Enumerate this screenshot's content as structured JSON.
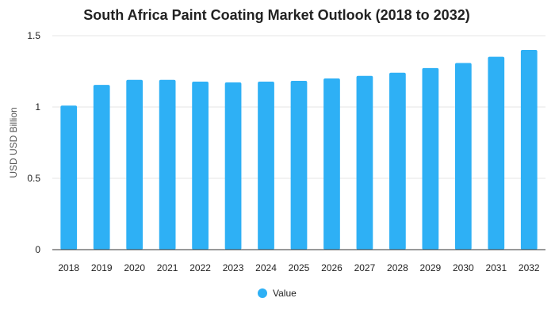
{
  "chart_data": {
    "type": "bar",
    "title": "South Africa Paint Coating Market Outlook (2018 to 2032)",
    "xlabel": "",
    "ylabel": "USD USD Billion",
    "categories": [
      "2018",
      "2019",
      "2020",
      "2021",
      "2022",
      "2023",
      "2024",
      "2025",
      "2026",
      "2027",
      "2028",
      "2029",
      "2030",
      "2031",
      "2032"
    ],
    "series": [
      {
        "name": "Value",
        "color": "#2eb0f5",
        "values": [
          1.01,
          1.155,
          1.19,
          1.19,
          1.178,
          1.172,
          1.178,
          1.183,
          1.2,
          1.218,
          1.24,
          1.273,
          1.308,
          1.352,
          1.4
        ]
      }
    ],
    "ylim": [
      0,
      1.5
    ],
    "yticks": [
      "0",
      "0.5",
      "1",
      "1.5"
    ],
    "grid": true,
    "legend": "bottom-center"
  }
}
